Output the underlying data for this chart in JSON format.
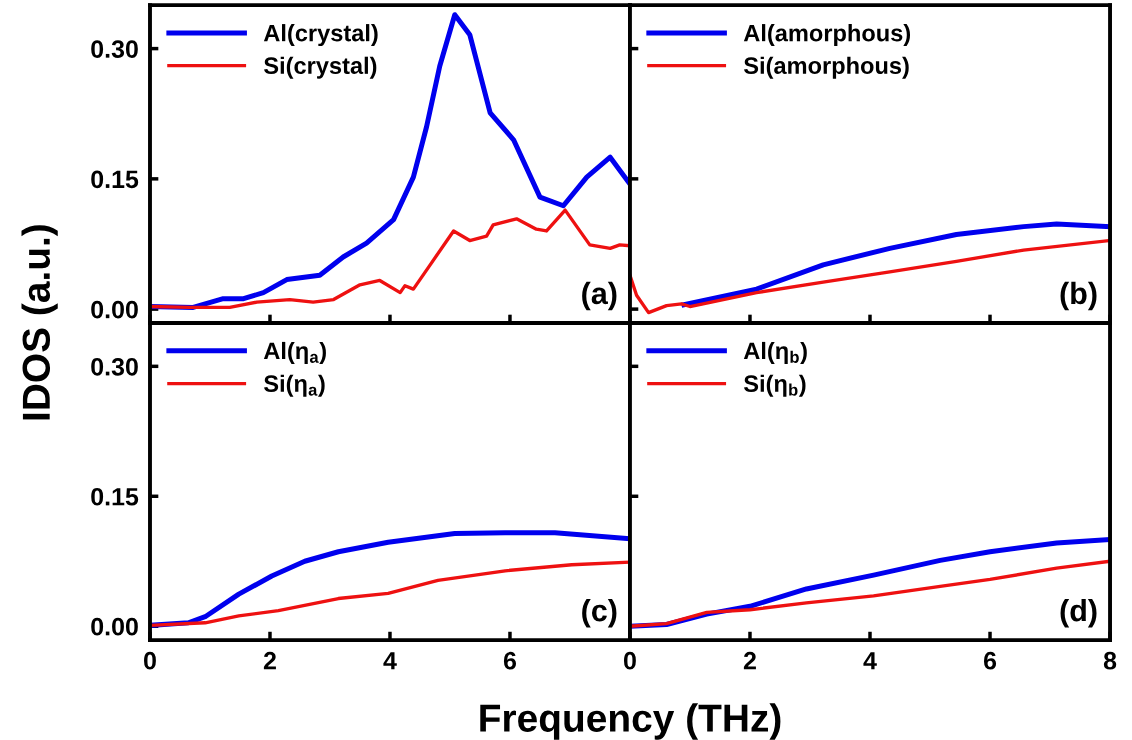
{
  "chart_data": [
    {
      "type": "line",
      "ylabel": "IDOS (a.u.)",
      "xlim": [
        0,
        8
      ],
      "ylim": [
        -0.016,
        0.35
      ],
      "xticks": [
        0,
        2,
        4,
        6,
        8
      ],
      "yticks": [
        {
          "value": 0,
          "label": "0.00"
        },
        {
          "value": 0.15,
          "label": "0.15"
        },
        {
          "value": 0.3,
          "label": "0.30"
        }
      ],
      "tick_labels": "y",
      "legend": "top left",
      "annotations": [
        "(a)"
      ],
      "series": [
        {
          "name": "Al(crystal)",
          "color": "#0000ee",
          "x": [
            0,
            0.72,
            1.22,
            1.56,
            1.89,
            2.28,
            2.83,
            3.22,
            3.61,
            4.06,
            4.39,
            4.61,
            4.83,
            5.08,
            5.33,
            5.67,
            6.06,
            6.5,
            6.89,
            7.28,
            7.67,
            8.0
          ],
          "values": [
            0.003,
            0.002,
            0.012,
            0.012,
            0.019,
            0.034,
            0.039,
            0.06,
            0.076,
            0.103,
            0.152,
            0.21,
            0.28,
            0.339,
            0.316,
            0.226,
            0.195,
            0.129,
            0.119,
            0.152,
            0.175,
            0.144
          ]
        },
        {
          "name": "Si(crystal)",
          "color": "#ee1111",
          "x": [
            0,
            0.67,
            1.33,
            1.78,
            2.33,
            2.72,
            3.06,
            3.5,
            3.83,
            4.17,
            4.25,
            4.39,
            4.67,
            5.06,
            5.33,
            5.61,
            5.72,
            6.11,
            6.44,
            6.61,
            6.92,
            7.33,
            7.67,
            7.83,
            8.0
          ],
          "values": [
            0.003,
            0.002,
            0.002,
            0.008,
            0.011,
            0.008,
            0.011,
            0.028,
            0.033,
            0.019,
            0.027,
            0.023,
            0.051,
            0.09,
            0.079,
            0.084,
            0.097,
            0.104,
            0.092,
            0.09,
            0.114,
            0.074,
            0.07,
            0.074,
            0.073
          ]
        }
      ]
    },
    {
      "type": "line",
      "xlim": [
        0,
        8
      ],
      "ylim": [
        -0.016,
        0.35
      ],
      "xticks": [
        0,
        2,
        4,
        6,
        8
      ],
      "yticks": [
        0,
        0.15,
        0.3
      ],
      "tick_labels": false,
      "legend": "top left",
      "annotations": [
        "(b)"
      ],
      "series": [
        {
          "name": "Al(amorphous)",
          "color": "#0000ee",
          "x": [
            0.9,
            2.11,
            3.22,
            4.33,
            5.44,
            6.56,
            7.11,
            8
          ],
          "values": [
            0.005,
            0.023,
            0.051,
            0.07,
            0.086,
            0.095,
            0.098,
            0.095
          ]
        },
        {
          "name": "Si(amorphous)",
          "color": "#ee1111",
          "x": [
            0,
            0.11,
            0.31,
            0.61,
            0.86,
            1.0,
            2.11,
            3.22,
            4.33,
            5.44,
            6.56,
            8
          ],
          "values": [
            0.039,
            0.016,
            -0.004,
            0.004,
            0.006,
            0.003,
            0.019,
            0.031,
            0.043,
            0.055,
            0.068,
            0.079
          ]
        }
      ]
    },
    {
      "type": "line",
      "xlabel": "Frequency (THz)",
      "xlim": [
        0,
        8
      ],
      "ylim": [
        -0.016,
        0.35
      ],
      "xticks": [
        0,
        2,
        4,
        6,
        {
          "value": 8,
          "label": null
        }
      ],
      "yticks": [
        {
          "value": 0,
          "label": "0.00"
        },
        {
          "value": 0.15,
          "label": "0.15"
        },
        {
          "value": 0.3,
          "label": "0.30"
        }
      ],
      "legend": "top left",
      "annotations": [
        "(c)"
      ],
      "series": [
        {
          "name": "Al(η$_{a}$)",
          "color": "#0000ee",
          "x": [
            0,
            0.64,
            0.92,
            1.48,
            2.03,
            2.58,
            3.14,
            3.97,
            5.08,
            5.92,
            6.75,
            8
          ],
          "values": [
            0.001,
            0.004,
            0.011,
            0.037,
            0.058,
            0.075,
            0.086,
            0.097,
            0.107,
            0.108,
            0.108,
            0.101
          ]
        },
        {
          "name": "Si(η$_{a}$)",
          "color": "#ee1111",
          "x": [
            0,
            0.92,
            1.48,
            2.14,
            3.14,
            3.97,
            4.8,
            5.92,
            7.03,
            8
          ],
          "values": [
            0.001,
            0.004,
            0.012,
            0.018,
            0.032,
            0.038,
            0.053,
            0.064,
            0.071,
            0.074
          ]
        }
      ]
    },
    {
      "type": "line",
      "xlim": [
        0,
        8
      ],
      "ylim": [
        -0.016,
        0.35
      ],
      "xticks": [
        0,
        2,
        4,
        6,
        8
      ],
      "yticks": [
        0,
        0.15,
        0.3
      ],
      "tick_labels": "x",
      "legend": "top left",
      "annotations": [
        "(d)"
      ],
      "series": [
        {
          "name": "Al(η$_{b}$)",
          "color": "#0000ee",
          "x": [
            0,
            0.61,
            1.28,
            2.0,
            2.94,
            4.06,
            5.17,
            6.0,
            7.11,
            8
          ],
          "values": [
            0.0,
            0.002,
            0.014,
            0.023,
            0.043,
            0.059,
            0.076,
            0.086,
            0.096,
            0.1
          ]
        },
        {
          "name": "Si(η$_{b}$)",
          "color": "#ee1111",
          "x": [
            0,
            0.61,
            1.28,
            2.0,
            2.94,
            4.06,
            5.17,
            6.0,
            7.11,
            8
          ],
          "values": [
            0.0,
            0.003,
            0.016,
            0.019,
            0.027,
            0.035,
            0.046,
            0.054,
            0.067,
            0.075
          ]
        }
      ]
    }
  ]
}
